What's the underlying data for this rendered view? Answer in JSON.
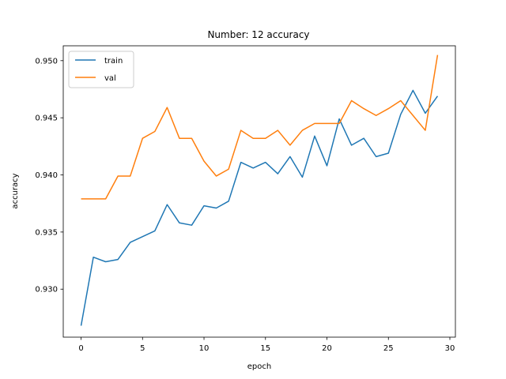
{
  "chart_data": {
    "type": "line",
    "title": "Number: 12 accuracy",
    "xlabel": "epoch",
    "ylabel": "accuracy",
    "xlim": [
      -1.45,
      30.45
    ],
    "ylim": [
      0.9258,
      0.9513
    ],
    "xticks": [
      0,
      5,
      10,
      15,
      20,
      25,
      30
    ],
    "xtick_labels": [
      "0",
      "5",
      "10",
      "15",
      "20",
      "25",
      "30"
    ],
    "yticks": [
      0.93,
      0.935,
      0.94,
      0.945,
      0.95
    ],
    "ytick_labels": [
      "0.930",
      "0.935",
      "0.940",
      "0.945",
      "0.950"
    ],
    "grid": false,
    "legend": "upper-left",
    "x": [
      0,
      1,
      2,
      3,
      4,
      5,
      6,
      7,
      8,
      9,
      10,
      11,
      12,
      13,
      14,
      15,
      16,
      17,
      18,
      19,
      20,
      21,
      22,
      23,
      24,
      25,
      26,
      27,
      28,
      29
    ],
    "series": [
      {
        "name": "train",
        "color": "#1f77b4",
        "values": [
          0.9268,
          0.9328,
          0.9324,
          0.9326,
          0.9341,
          0.9346,
          0.9351,
          0.9374,
          0.9358,
          0.9356,
          0.9373,
          0.9371,
          0.9377,
          0.9411,
          0.9406,
          0.9411,
          0.9401,
          0.9416,
          0.9398,
          0.9434,
          0.9408,
          0.9449,
          0.9426,
          0.9432,
          0.9416,
          0.9419,
          0.9453,
          0.9474,
          0.9454,
          0.9469
        ]
      },
      {
        "name": "val",
        "color": "#ff7f0e",
        "values": [
          0.9379,
          0.9379,
          0.9379,
          0.9399,
          0.9399,
          0.9432,
          0.9438,
          0.9459,
          0.9432,
          0.9432,
          0.9412,
          0.9399,
          0.9405,
          0.9439,
          0.9432,
          0.9432,
          0.9439,
          0.9426,
          0.9439,
          0.9445,
          0.9445,
          0.9445,
          0.9465,
          0.9458,
          0.9452,
          0.9458,
          0.9465,
          0.9452,
          0.9439,
          0.9505
        ]
      }
    ]
  }
}
